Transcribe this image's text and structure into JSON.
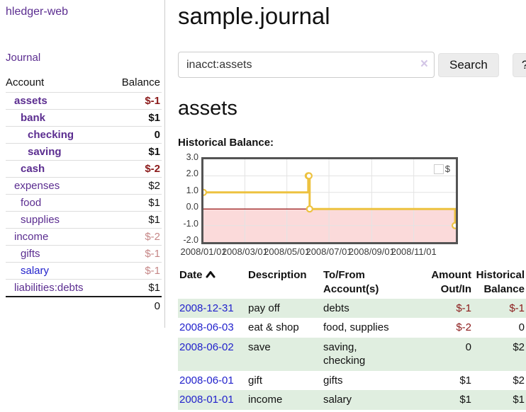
{
  "app": {
    "name": "hledger-web"
  },
  "sidebar": {
    "journal_label": "Journal",
    "accounts": {
      "headers": {
        "account": "Account",
        "balance": "Balance"
      },
      "rows": [
        {
          "name": "assets",
          "balance": "$-1"
        },
        {
          "name": "bank",
          "balance": "$1"
        },
        {
          "name": "checking",
          "balance": "0"
        },
        {
          "name": "saving",
          "balance": "$1"
        },
        {
          "name": "cash",
          "balance": "$-2"
        },
        {
          "name": "expenses",
          "balance": "$2"
        },
        {
          "name": "food",
          "balance": "$1"
        },
        {
          "name": "supplies",
          "balance": "$1"
        },
        {
          "name": "income",
          "balance": "$-2"
        },
        {
          "name": "gifts",
          "balance": "$-1"
        },
        {
          "name": "salary",
          "balance": "$-1"
        },
        {
          "name": "liabilities:debts",
          "balance": "$1"
        }
      ],
      "total": "0"
    }
  },
  "header": {
    "title": "sample.journal"
  },
  "search": {
    "value": "inacct:assets",
    "clear_label": "×",
    "button_label": "Search",
    "help_label": "?"
  },
  "account_page": {
    "heading": "assets",
    "chart_label": "Historical Balance:"
  },
  "chart_data": {
    "type": "line",
    "step": true,
    "title": "Historical Balance:",
    "x_range_days": 366,
    "ylim": [
      -2,
      3
    ],
    "y_ticks": [
      "3.0",
      "2.0",
      "1.0",
      "0.0",
      "-1.0",
      "-2.0"
    ],
    "x_ticks": [
      {
        "label": "2008/01/01",
        "day": 0
      },
      {
        "label": "2008/03/01",
        "day": 60
      },
      {
        "label": "2008/05/01",
        "day": 121
      },
      {
        "label": "2008/07/01",
        "day": 182
      },
      {
        "label": "2008/09/01",
        "day": 244
      },
      {
        "label": "2008/11/01",
        "day": 305
      }
    ],
    "series": [
      {
        "name": "$",
        "color": "#edc240",
        "points": [
          {
            "date": "2008-01-01",
            "day": 0,
            "value": 1
          },
          {
            "date": "2008-06-01",
            "day": 152,
            "value": 2
          },
          {
            "date": "2008-06-02",
            "day": 153,
            "value": 2
          },
          {
            "date": "2008-06-03",
            "day": 154,
            "value": 0
          },
          {
            "date": "2008-12-31",
            "day": 365,
            "value": -1
          }
        ]
      }
    ],
    "grid": true,
    "negative_fill": "#fbdada",
    "zero_line_color": "#8b0000",
    "grid_color": "#e3e3e3",
    "legend": {
      "label": "$",
      "position": "top-right"
    }
  },
  "register_table": {
    "headers": {
      "date": "Date",
      "description": "Description",
      "accounts": "To/From\nAccount(s)",
      "amount": "Amount\nOut/In",
      "balance": "Historical\nBalance"
    },
    "rows": [
      {
        "date": "2008-12-31",
        "description": "pay off",
        "accounts": "debts",
        "amount": "$-1",
        "balance": "$-1"
      },
      {
        "date": "2008-06-03",
        "description": "eat & shop",
        "accounts": "food, supplies",
        "amount": "$-2",
        "balance": "0"
      },
      {
        "date": "2008-06-02",
        "description": "save",
        "accounts": "saving,\nchecking",
        "amount": "0",
        "balance": "$2"
      },
      {
        "date": "2008-06-01",
        "description": "gift",
        "accounts": "gifts",
        "amount": "$1",
        "balance": "$2"
      },
      {
        "date": "2008-01-01",
        "description": "income",
        "accounts": "salary",
        "amount": "$1",
        "balance": "$1"
      }
    ]
  },
  "colors": {
    "link_purple": "#5b2d90",
    "link_blue": "#2222cc",
    "negative_dark": "#8b1a1a",
    "negative_light": "#c68787",
    "row_shade_green": "#e0eee0",
    "chart_line_gold": "#edc240",
    "chart_negative_pink": "#fbdada",
    "chart_zero_line": "#8b0000"
  }
}
